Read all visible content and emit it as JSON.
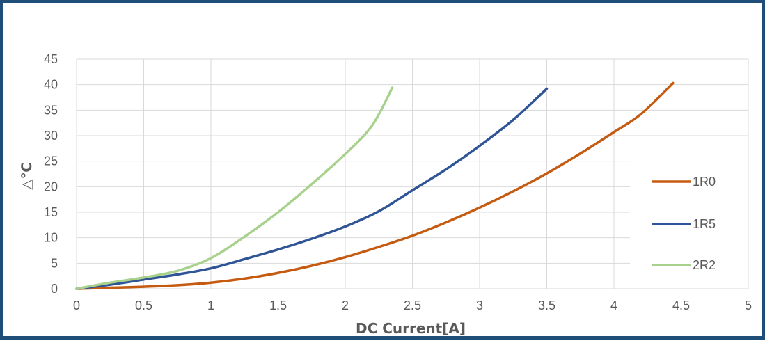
{
  "chart_data": {
    "type": "line",
    "title": "",
    "xlabel": "DC Current[A]",
    "ylabel": "△℃",
    "xlim": [
      0,
      5
    ],
    "ylim": [
      0,
      45
    ],
    "x_ticks": [
      "0",
      "0.5",
      "1",
      "1.5",
      "2",
      "2.5",
      "3",
      "3.5",
      "4",
      "4.5",
      "5"
    ],
    "y_ticks": [
      "0",
      "5",
      "10",
      "15",
      "20",
      "25",
      "30",
      "35",
      "40",
      "45"
    ],
    "grid": true,
    "legend_position": "right",
    "series": [
      {
        "name": "1R0",
        "color": "#c55a11",
        "x": [
          0,
          0.25,
          0.5,
          0.75,
          1.0,
          1.25,
          1.5,
          1.75,
          2.0,
          2.25,
          2.5,
          2.75,
          3.0,
          3.25,
          3.5,
          3.75,
          4.0,
          4.2,
          4.44
        ],
        "y": [
          0,
          0.2,
          0.4,
          0.7,
          1.2,
          2.0,
          3.1,
          4.5,
          6.2,
          8.2,
          10.4,
          13.0,
          15.9,
          19.1,
          22.6,
          26.5,
          30.7,
          34.2,
          40.3
        ]
      },
      {
        "name": "1R5",
        "color": "#2f5597",
        "x": [
          0,
          0.25,
          0.5,
          0.75,
          1.0,
          1.25,
          1.5,
          1.75,
          2.0,
          2.25,
          2.5,
          2.75,
          3.0,
          3.25,
          3.5
        ],
        "y": [
          0,
          0.8,
          1.8,
          2.8,
          4.0,
          5.8,
          7.7,
          9.8,
          12.2,
          15.2,
          19.3,
          23.4,
          28.0,
          33.1,
          39.2
        ]
      },
      {
        "name": "2R2",
        "color": "#a9d18e",
        "x": [
          0,
          0.25,
          0.5,
          0.75,
          1.0,
          1.25,
          1.5,
          1.75,
          2.0,
          2.2,
          2.35
        ],
        "y": [
          0,
          1.2,
          2.2,
          3.5,
          6.0,
          10.2,
          15.0,
          20.5,
          26.4,
          32.0,
          39.4
        ]
      }
    ]
  }
}
